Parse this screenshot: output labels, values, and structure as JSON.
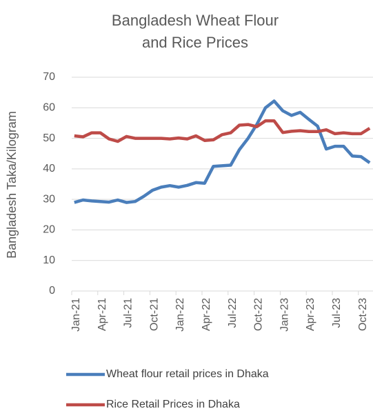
{
  "chart_data": {
    "type": "line",
    "title": [
      "Bangladesh Wheat Flour",
      "and Rice Prices"
    ],
    "y_label": "Bangladesh Taka/Kilogram",
    "categories": [
      "Jan-21",
      null,
      null,
      "Apr-21",
      null,
      null,
      "Jul-21",
      null,
      null,
      "Oct-21",
      null,
      null,
      "Jan-22",
      null,
      null,
      "Apr-22",
      null,
      null,
      "Jul-22",
      null,
      null,
      "Oct-22",
      null,
      null,
      "Jan-23",
      null,
      null,
      "Apr-23",
      null,
      null,
      "Jul-23",
      null,
      null,
      "Oct-23",
      null
    ],
    "series": [
      {
        "name": "Wheat flour retail prices in Dhaka",
        "color": "#4a7ebb",
        "values": [
          29,
          29.8,
          29.5,
          29.3,
          29.1,
          29.8,
          29,
          29.3,
          31,
          33,
          34,
          34.5,
          34,
          34.6,
          35.5,
          35.3,
          40.8,
          41,
          41.2,
          46.3,
          50,
          54.5,
          60,
          62.2,
          59,
          57.5,
          58.5,
          56.2,
          54,
          46.5,
          47.4,
          47.4,
          44.2,
          44,
          42
        ]
      },
      {
        "name": "Rice Retail Prices in Dhaka",
        "color": "#be4b48",
        "values": [
          50.8,
          50.5,
          51.8,
          51.8,
          49.8,
          49,
          50.6,
          50,
          50,
          50,
          50,
          49.8,
          50.1,
          49.8,
          50.8,
          49.3,
          49.5,
          51.2,
          51.8,
          54.3,
          54.5,
          53.8,
          55.7,
          55.7,
          51.9,
          52.3,
          52.5,
          52.2,
          52.2,
          52.8,
          51.5,
          51.8,
          51.5,
          51.5,
          53.3
        ]
      }
    ],
    "ylim": [
      0,
      70
    ],
    "yticks": [
      0,
      10,
      20,
      30,
      40,
      50,
      60,
      70
    ],
    "grid": true,
    "legend": "bottom"
  }
}
